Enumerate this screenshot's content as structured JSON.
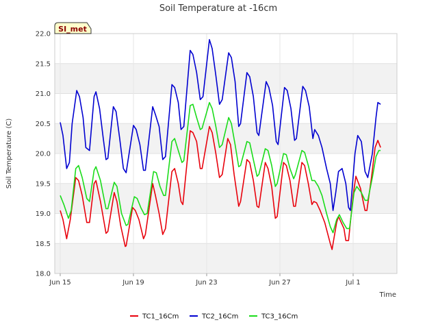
{
  "chart_data": {
    "type": "line",
    "title": "Soil Temperature at -16cm",
    "xlabel": "Time",
    "ylabel": "Soil Temperature (C)",
    "badge": "SI_met",
    "ylim": [
      18.0,
      22.0
    ],
    "yticks": [
      18.0,
      18.5,
      19.0,
      19.5,
      20.0,
      20.5,
      21.0,
      21.5,
      22.0
    ],
    "xlim": [
      0,
      19
    ],
    "xticks": [
      {
        "value": 0,
        "label": "Jun 15"
      },
      {
        "value": 4,
        "label": "Jun 19"
      },
      {
        "value": 8,
        "label": "Jun 23"
      },
      {
        "value": 12,
        "label": "Jun 27"
      },
      {
        "value": 16,
        "label": "Jul 1"
      }
    ],
    "x_unit": "days since Jun 15",
    "series": [
      {
        "name": "TC1_16Cm",
        "color": "#e8000b",
        "points": [
          [
            0.0,
            19.05
          ],
          [
            0.15,
            18.9
          ],
          [
            0.35,
            18.58
          ],
          [
            0.55,
            18.9
          ],
          [
            0.85,
            19.6
          ],
          [
            1.0,
            19.55
          ],
          [
            1.2,
            19.3
          ],
          [
            1.45,
            18.85
          ],
          [
            1.6,
            18.85
          ],
          [
            1.85,
            19.5
          ],
          [
            1.95,
            19.55
          ],
          [
            2.2,
            19.2
          ],
          [
            2.5,
            18.67
          ],
          [
            2.6,
            18.7
          ],
          [
            2.95,
            19.35
          ],
          [
            3.1,
            19.2
          ],
          [
            3.3,
            18.8
          ],
          [
            3.55,
            18.45
          ],
          [
            3.6,
            18.46
          ],
          [
            3.95,
            19.1
          ],
          [
            4.1,
            19.05
          ],
          [
            4.3,
            18.9
          ],
          [
            4.55,
            18.58
          ],
          [
            4.65,
            18.65
          ],
          [
            5.05,
            19.5
          ],
          [
            5.2,
            19.3
          ],
          [
            5.4,
            19.0
          ],
          [
            5.6,
            18.65
          ],
          [
            5.75,
            18.75
          ],
          [
            6.1,
            19.7
          ],
          [
            6.25,
            19.75
          ],
          [
            6.45,
            19.5
          ],
          [
            6.6,
            19.2
          ],
          [
            6.7,
            19.15
          ],
          [
            7.1,
            20.38
          ],
          [
            7.25,
            20.35
          ],
          [
            7.45,
            20.2
          ],
          [
            7.65,
            19.75
          ],
          [
            7.75,
            19.75
          ],
          [
            8.15,
            20.45
          ],
          [
            8.3,
            20.35
          ],
          [
            8.5,
            20.0
          ],
          [
            8.7,
            19.6
          ],
          [
            8.85,
            19.65
          ],
          [
            9.15,
            20.25
          ],
          [
            9.3,
            20.15
          ],
          [
            9.5,
            19.65
          ],
          [
            9.75,
            19.12
          ],
          [
            9.85,
            19.2
          ],
          [
            10.2,
            19.9
          ],
          [
            10.35,
            19.85
          ],
          [
            10.55,
            19.55
          ],
          [
            10.75,
            19.12
          ],
          [
            10.85,
            19.1
          ],
          [
            11.2,
            19.85
          ],
          [
            11.35,
            19.75
          ],
          [
            11.55,
            19.45
          ],
          [
            11.75,
            18.92
          ],
          [
            11.85,
            18.95
          ],
          [
            12.2,
            19.85
          ],
          [
            12.35,
            19.8
          ],
          [
            12.55,
            19.55
          ],
          [
            12.75,
            19.12
          ],
          [
            12.85,
            19.12
          ],
          [
            13.2,
            19.85
          ],
          [
            13.35,
            19.8
          ],
          [
            13.55,
            19.5
          ],
          [
            13.75,
            19.15
          ],
          [
            13.85,
            19.2
          ],
          [
            14.0,
            19.18
          ],
          [
            14.2,
            19.05
          ],
          [
            14.45,
            18.85
          ],
          [
            14.75,
            18.5
          ],
          [
            14.85,
            18.4
          ],
          [
            15.1,
            18.85
          ],
          [
            15.2,
            18.95
          ],
          [
            15.5,
            18.75
          ],
          [
            15.6,
            18.55
          ],
          [
            15.75,
            18.55
          ],
          [
            16.0,
            19.3
          ],
          [
            16.15,
            19.62
          ],
          [
            16.4,
            19.42
          ],
          [
            16.65,
            19.05
          ],
          [
            16.75,
            19.05
          ],
          [
            17.0,
            19.6
          ],
          [
            17.2,
            20.1
          ],
          [
            17.35,
            20.22
          ],
          [
            17.5,
            20.1
          ]
        ]
      },
      {
        "name": "TC2_16Cm",
        "color": "#0000d0",
        "points": [
          [
            0.0,
            20.52
          ],
          [
            0.15,
            20.3
          ],
          [
            0.35,
            19.75
          ],
          [
            0.5,
            19.85
          ],
          [
            0.65,
            20.5
          ],
          [
            0.9,
            21.05
          ],
          [
            1.05,
            20.95
          ],
          [
            1.25,
            20.6
          ],
          [
            1.4,
            20.1
          ],
          [
            1.6,
            20.05
          ],
          [
            1.85,
            20.95
          ],
          [
            1.95,
            21.03
          ],
          [
            2.15,
            20.75
          ],
          [
            2.35,
            20.25
          ],
          [
            2.5,
            19.9
          ],
          [
            2.6,
            19.92
          ],
          [
            2.9,
            20.78
          ],
          [
            3.05,
            20.7
          ],
          [
            3.25,
            20.25
          ],
          [
            3.45,
            19.75
          ],
          [
            3.6,
            19.68
          ],
          [
            4.0,
            20.47
          ],
          [
            4.15,
            20.4
          ],
          [
            4.35,
            20.15
          ],
          [
            4.55,
            19.72
          ],
          [
            4.65,
            19.72
          ],
          [
            5.05,
            20.78
          ],
          [
            5.2,
            20.65
          ],
          [
            5.4,
            20.45
          ],
          [
            5.6,
            19.9
          ],
          [
            5.75,
            19.95
          ],
          [
            6.1,
            21.15
          ],
          [
            6.25,
            21.1
          ],
          [
            6.45,
            20.85
          ],
          [
            6.6,
            20.4
          ],
          [
            6.75,
            20.45
          ],
          [
            7.1,
            21.72
          ],
          [
            7.25,
            21.65
          ],
          [
            7.45,
            21.35
          ],
          [
            7.65,
            20.9
          ],
          [
            7.8,
            20.95
          ],
          [
            8.15,
            21.9
          ],
          [
            8.3,
            21.75
          ],
          [
            8.5,
            21.3
          ],
          [
            8.7,
            20.82
          ],
          [
            8.85,
            20.9
          ],
          [
            9.2,
            21.68
          ],
          [
            9.35,
            21.6
          ],
          [
            9.55,
            21.2
          ],
          [
            9.75,
            20.45
          ],
          [
            9.85,
            20.5
          ],
          [
            10.2,
            21.35
          ],
          [
            10.35,
            21.28
          ],
          [
            10.55,
            20.95
          ],
          [
            10.75,
            20.35
          ],
          [
            10.85,
            20.3
          ],
          [
            11.25,
            21.2
          ],
          [
            11.4,
            21.1
          ],
          [
            11.6,
            20.8
          ],
          [
            11.8,
            20.2
          ],
          [
            11.9,
            20.15
          ],
          [
            12.25,
            21.1
          ],
          [
            12.4,
            21.05
          ],
          [
            12.6,
            20.75
          ],
          [
            12.8,
            20.22
          ],
          [
            12.9,
            20.25
          ],
          [
            13.25,
            21.12
          ],
          [
            13.4,
            21.05
          ],
          [
            13.6,
            20.78
          ],
          [
            13.8,
            20.25
          ],
          [
            13.9,
            20.4
          ],
          [
            14.1,
            20.3
          ],
          [
            14.3,
            20.1
          ],
          [
            14.55,
            19.75
          ],
          [
            14.75,
            19.5
          ],
          [
            14.9,
            19.05
          ],
          [
            15.05,
            19.35
          ],
          [
            15.2,
            19.7
          ],
          [
            15.4,
            19.75
          ],
          [
            15.6,
            19.5
          ],
          [
            15.75,
            19.1
          ],
          [
            15.85,
            19.05
          ],
          [
            16.1,
            20.0
          ],
          [
            16.25,
            20.3
          ],
          [
            16.45,
            20.2
          ],
          [
            16.65,
            19.7
          ],
          [
            16.8,
            19.6
          ],
          [
            17.05,
            20.0
          ],
          [
            17.25,
            20.6
          ],
          [
            17.35,
            20.85
          ],
          [
            17.5,
            20.82
          ]
        ]
      },
      {
        "name": "TC3_16Cm",
        "color": "#1adc1a",
        "points": [
          [
            0.0,
            19.3
          ],
          [
            0.2,
            19.15
          ],
          [
            0.45,
            18.92
          ],
          [
            0.6,
            19.05
          ],
          [
            0.85,
            19.75
          ],
          [
            1.0,
            19.8
          ],
          [
            1.2,
            19.6
          ],
          [
            1.45,
            19.25
          ],
          [
            1.6,
            19.2
          ],
          [
            1.85,
            19.72
          ],
          [
            1.95,
            19.78
          ],
          [
            2.2,
            19.55
          ],
          [
            2.5,
            19.08
          ],
          [
            2.6,
            19.08
          ],
          [
            2.95,
            19.52
          ],
          [
            3.1,
            19.45
          ],
          [
            3.35,
            19.0
          ],
          [
            3.6,
            18.8
          ],
          [
            3.7,
            18.82
          ],
          [
            4.05,
            19.28
          ],
          [
            4.2,
            19.25
          ],
          [
            4.4,
            19.1
          ],
          [
            4.6,
            18.98
          ],
          [
            4.75,
            19.0
          ],
          [
            5.1,
            19.7
          ],
          [
            5.25,
            19.68
          ],
          [
            5.45,
            19.45
          ],
          [
            5.65,
            19.3
          ],
          [
            5.75,
            19.3
          ],
          [
            6.1,
            20.2
          ],
          [
            6.25,
            20.25
          ],
          [
            6.45,
            20.05
          ],
          [
            6.65,
            19.85
          ],
          [
            6.75,
            19.88
          ],
          [
            7.1,
            20.8
          ],
          [
            7.25,
            20.82
          ],
          [
            7.45,
            20.6
          ],
          [
            7.65,
            20.4
          ],
          [
            7.75,
            20.42
          ],
          [
            8.15,
            20.85
          ],
          [
            8.3,
            20.75
          ],
          [
            8.5,
            20.45
          ],
          [
            8.7,
            20.1
          ],
          [
            8.85,
            20.15
          ],
          [
            9.2,
            20.6
          ],
          [
            9.35,
            20.5
          ],
          [
            9.55,
            20.15
          ],
          [
            9.75,
            19.78
          ],
          [
            9.85,
            19.8
          ],
          [
            10.2,
            20.2
          ],
          [
            10.35,
            20.18
          ],
          [
            10.55,
            19.9
          ],
          [
            10.75,
            19.62
          ],
          [
            10.85,
            19.65
          ],
          [
            11.2,
            20.08
          ],
          [
            11.35,
            20.05
          ],
          [
            11.55,
            19.8
          ],
          [
            11.75,
            19.45
          ],
          [
            11.85,
            19.5
          ],
          [
            12.2,
            20.0
          ],
          [
            12.35,
            19.98
          ],
          [
            12.55,
            19.75
          ],
          [
            12.75,
            19.58
          ],
          [
            12.85,
            19.65
          ],
          [
            13.2,
            20.05
          ],
          [
            13.35,
            20.02
          ],
          [
            13.55,
            19.8
          ],
          [
            13.75,
            19.55
          ],
          [
            13.9,
            19.55
          ],
          [
            14.1,
            19.45
          ],
          [
            14.3,
            19.3
          ],
          [
            14.55,
            19.0
          ],
          [
            14.75,
            18.78
          ],
          [
            14.9,
            18.68
          ],
          [
            15.1,
            18.9
          ],
          [
            15.25,
            18.98
          ],
          [
            15.45,
            18.85
          ],
          [
            15.65,
            18.75
          ],
          [
            15.8,
            18.75
          ],
          [
            16.05,
            19.35
          ],
          [
            16.2,
            19.45
          ],
          [
            16.45,
            19.35
          ],
          [
            16.65,
            19.22
          ],
          [
            16.8,
            19.22
          ],
          [
            17.05,
            19.6
          ],
          [
            17.25,
            19.95
          ],
          [
            17.4,
            20.05
          ],
          [
            17.5,
            20.05
          ]
        ]
      }
    ],
    "legend_position": "bottom-center"
  }
}
